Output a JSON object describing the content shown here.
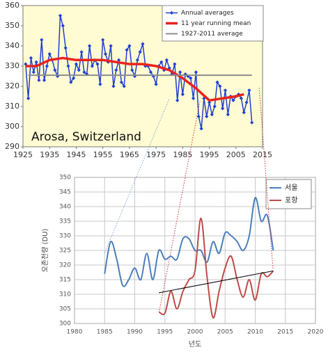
{
  "chart_data": [
    {
      "type": "line",
      "annotation": "Arosa, Switzerland",
      "plot_background": "#fffbd2",
      "grid": false,
      "legend": "upper right",
      "xlim": [
        1925,
        2015
      ],
      "xticks": [
        1925,
        1935,
        1945,
        1955,
        1965,
        1975,
        1985,
        1995,
        2005,
        2015
      ],
      "ylim": [
        290,
        360
      ],
      "yticks": [
        290,
        300,
        310,
        320,
        330,
        340,
        350,
        360
      ],
      "series": [
        {
          "name": "Annual averages",
          "color": "#1f3fd6",
          "marker": "diamond",
          "x": [
            1926,
            1927,
            1928,
            1929,
            1930,
            1931,
            1932,
            1933,
            1934,
            1935,
            1936,
            1937,
            1938,
            1939,
            1940,
            1941,
            1942,
            1943,
            1944,
            1945,
            1946,
            1947,
            1948,
            1949,
            1950,
            1951,
            1952,
            1953,
            1954,
            1955,
            1956,
            1957,
            1958,
            1959,
            1960,
            1961,
            1962,
            1963,
            1964,
            1965,
            1966,
            1967,
            1968,
            1969,
            1970,
            1971,
            1972,
            1973,
            1974,
            1975,
            1976,
            1977,
            1978,
            1979,
            1980,
            1981,
            1982,
            1983,
            1984,
            1985,
            1986,
            1987,
            1988,
            1989,
            1990,
            1991,
            1992,
            1993,
            1994,
            1995,
            1996,
            1997,
            1998,
            1999,
            2000,
            2001,
            2002,
            2003,
            2004,
            2005,
            2006,
            2007,
            2008,
            2009,
            2010,
            2011
          ],
          "values": [
            331,
            314,
            334,
            327,
            332,
            323,
            343,
            323,
            330,
            336,
            333,
            328,
            325,
            355,
            350,
            339,
            330,
            322,
            324,
            331,
            328,
            337,
            327,
            326,
            340,
            330,
            333,
            331,
            321,
            343,
            336,
            332,
            340,
            320,
            328,
            333,
            322,
            320,
            338,
            340,
            328,
            325,
            333,
            337,
            341,
            330,
            330,
            327,
            325,
            321,
            330,
            332,
            328,
            333,
            329,
            326,
            331,
            313,
            327,
            316,
            326,
            325,
            324,
            314,
            327,
            305,
            299,
            314,
            305,
            312,
            306,
            310,
            322,
            320,
            309,
            318,
            306,
            315,
            313,
            315,
            316,
            314,
            307,
            312,
            318,
            302
          ]
        },
        {
          "name": "11 year running mean",
          "color": "#e8231c",
          "x": [
            1926,
            1930,
            1935,
            1940,
            1945,
            1950,
            1955,
            1960,
            1965,
            1970,
            1975,
            1980,
            1985,
            1990,
            1995,
            2000,
            2005,
            2008
          ],
          "values": [
            330,
            330,
            333,
            334,
            333,
            333,
            333,
            332,
            331,
            331,
            330,
            328,
            324,
            319,
            313,
            314,
            315,
            316
          ]
        },
        {
          "name": "1927-2011 average",
          "color": "#8c8c8c",
          "x": [
            1927,
            2011
          ],
          "values": [
            325.5,
            325.5
          ]
        }
      ]
    },
    {
      "type": "line",
      "smooth": true,
      "grid": true,
      "legend": "upper right",
      "xlabel": "년도",
      "ylabel": "오존전량 (DU)",
      "xlim": [
        1980,
        2020
      ],
      "xticks": [
        1980,
        1985,
        1990,
        1995,
        2000,
        2005,
        2010,
        2015,
        2020
      ],
      "ylim": [
        300,
        350
      ],
      "yticks": [
        300,
        305,
        310,
        315,
        320,
        325,
        330,
        335,
        340,
        345,
        350
      ],
      "series": [
        {
          "name": "서울",
          "color": "#4a7ebb",
          "x": [
            1985,
            1986,
            1987,
            1988,
            1989,
            1990,
            1991,
            1992,
            1993,
            1994,
            1995,
            1996,
            1997,
            1998,
            1999,
            2000,
            2001,
            2002,
            2003,
            2004,
            2005,
            2006,
            2007,
            2008,
            2009,
            2010,
            2011,
            2012,
            2013
          ],
          "values": [
            317,
            328,
            322,
            313,
            315,
            319,
            315,
            324,
            315,
            325,
            322,
            323,
            322,
            329,
            329,
            325,
            325,
            321,
            328,
            324,
            331,
            330,
            328,
            325,
            330,
            343,
            335,
            337,
            325
          ]
        },
        {
          "name": "포항",
          "color": "#be4b48",
          "x": [
            1994,
            1995,
            1996,
            1997,
            1998,
            1999,
            2000,
            2001,
            2002,
            2003,
            2004,
            2005,
            2006,
            2007,
            2008,
            2009,
            2010,
            2011,
            2012,
            2013
          ],
          "values": [
            304,
            303.5,
            311,
            305,
            311,
            315,
            318,
            336,
            316,
            302,
            311,
            319,
            323,
            315,
            309,
            315,
            308,
            317,
            316,
            318
          ]
        },
        {
          "color": "#000000",
          "x": [
            1994,
            2013
          ],
          "values": [
            310.5,
            318
          ]
        }
      ]
    }
  ]
}
